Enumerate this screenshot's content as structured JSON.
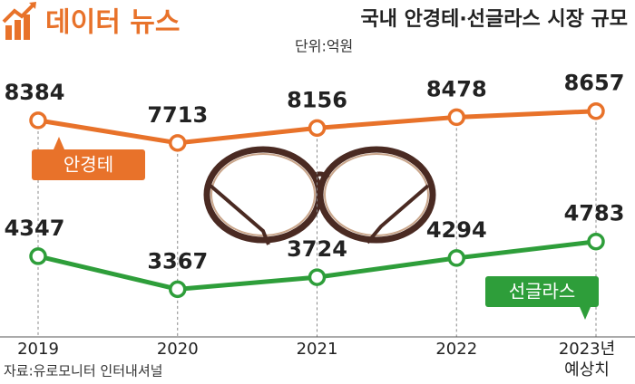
{
  "logo": "데이터 뉴스",
  "chart_data": {
    "type": "line",
    "title": "국내 안경테·선글라스 시장 규모",
    "subtitle": "단위:억원",
    "categories": [
      "2019",
      "2020",
      "2021",
      "2022",
      "2023년"
    ],
    "forecast_label": "예상치",
    "series": [
      {
        "name": "안경테",
        "color": "#e8722a",
        "values": [
          8384,
          7713,
          8156,
          8478,
          8657
        ]
      },
      {
        "name": "선글라스",
        "color": "#2e9e3a",
        "values": [
          4347,
          3367,
          3724,
          4294,
          4783
        ]
      }
    ],
    "ylim": [
      3000,
      9000
    ],
    "source": "자료:유로모니터 인터내셔널"
  }
}
